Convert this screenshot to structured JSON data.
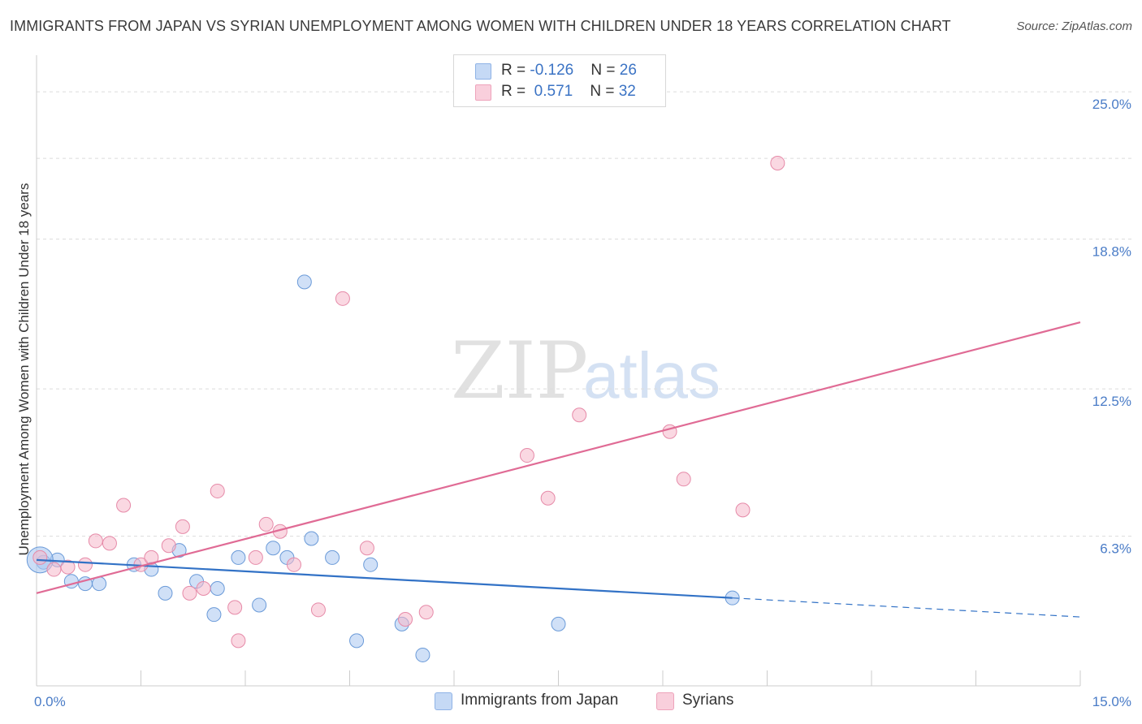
{
  "title": "IMMIGRANTS FROM JAPAN VS SYRIAN UNEMPLOYMENT AMONG WOMEN WITH CHILDREN UNDER 18 YEARS CORRELATION CHART",
  "source": "Source: ZipAtlas.com",
  "watermark": {
    "zip": "ZIP",
    "atlas": "atlas"
  },
  "legend_stats": [
    {
      "r_label": "R = ",
      "r_value": "-0.126",
      "n_label": "N = ",
      "n_value": "26",
      "color": "#a9c6f0"
    },
    {
      "r_label": "R = ",
      "r_value": " 0.571",
      "n_label": "N = ",
      "n_value": "32",
      "color": "#f5b8cb"
    }
  ],
  "chart_data": {
    "type": "scatter",
    "title": "IMMIGRANTS FROM JAPAN VS SYRIAN UNEMPLOYMENT AMONG WOMEN WITH CHILDREN UNDER 18 YEARS CORRELATION CHART",
    "xlabel": "",
    "ylabel": "Unemployment Among Women with Children Under 18 years",
    "xlim": [
      0,
      15
    ],
    "ylim": [
      0,
      26.2
    ],
    "x_tick_labels": [
      {
        "value": 0,
        "label": "0.0%"
      },
      {
        "value": 15,
        "label": "15.0%"
      }
    ],
    "y_tick_labels": [
      {
        "value": 6.3,
        "label": "6.3%"
      },
      {
        "value": 12.5,
        "label": "12.5%"
      },
      {
        "value": 18.8,
        "label": "18.8%"
      },
      {
        "value": 25.0,
        "label": "25.0%"
      }
    ],
    "grid": true,
    "legend_position": "bottom",
    "series": [
      {
        "name": "Immigrants from Japan",
        "color": "#a9c6f0",
        "stroke": "#6a9ad8",
        "line_color": "#3272c6",
        "trend": {
          "x0": 0,
          "y0": 5.3,
          "x1": 10.0,
          "y1": 3.7,
          "x_ext": 15,
          "y_ext": 2.9
        },
        "points": [
          [
            0.1,
            5.2
          ],
          [
            0.3,
            5.3
          ],
          [
            0.5,
            4.4
          ],
          [
            0.7,
            4.3
          ],
          [
            0.9,
            4.3
          ],
          [
            1.4,
            5.1
          ],
          [
            1.65,
            4.9
          ],
          [
            1.85,
            3.9
          ],
          [
            2.05,
            5.7
          ],
          [
            2.3,
            4.4
          ],
          [
            2.6,
            4.1
          ],
          [
            2.55,
            3.0
          ],
          [
            2.9,
            5.4
          ],
          [
            3.2,
            3.4
          ],
          [
            3.4,
            5.8
          ],
          [
            3.6,
            5.4
          ],
          [
            3.85,
            17.0
          ],
          [
            3.95,
            6.2
          ],
          [
            4.25,
            5.4
          ],
          [
            4.6,
            1.9
          ],
          [
            4.8,
            5.1
          ],
          [
            5.25,
            2.6
          ],
          [
            5.55,
            1.3
          ],
          [
            7.5,
            2.6
          ],
          [
            10.0,
            3.7
          ],
          [
            0.05,
            5.3
          ]
        ]
      },
      {
        "name": "Syrians",
        "color": "#f5b8cb",
        "stroke": "#e68aa8",
        "line_color": "#e06b95",
        "trend": {
          "x0": 0,
          "y0": 3.9,
          "x1": 15,
          "y1": 15.3
        },
        "points": [
          [
            0.05,
            5.4
          ],
          [
            0.25,
            4.9
          ],
          [
            0.45,
            5.0
          ],
          [
            0.7,
            5.1
          ],
          [
            0.85,
            6.1
          ],
          [
            1.05,
            6.0
          ],
          [
            1.25,
            7.6
          ],
          [
            1.5,
            5.1
          ],
          [
            1.65,
            5.4
          ],
          [
            1.9,
            5.9
          ],
          [
            2.1,
            6.7
          ],
          [
            2.2,
            3.9
          ],
          [
            2.4,
            4.1
          ],
          [
            2.6,
            8.2
          ],
          [
            2.85,
            3.3
          ],
          [
            2.9,
            1.9
          ],
          [
            3.15,
            5.4
          ],
          [
            3.3,
            6.8
          ],
          [
            3.5,
            6.5
          ],
          [
            3.7,
            5.1
          ],
          [
            4.05,
            3.2
          ],
          [
            4.4,
            16.3
          ],
          [
            4.75,
            5.8
          ],
          [
            5.3,
            2.8
          ],
          [
            5.6,
            3.1
          ],
          [
            7.05,
            9.7
          ],
          [
            7.35,
            7.9
          ],
          [
            7.8,
            11.4
          ],
          [
            9.1,
            10.7
          ],
          [
            9.3,
            8.7
          ],
          [
            10.15,
            7.4
          ],
          [
            10.65,
            22.0
          ]
        ]
      }
    ]
  }
}
